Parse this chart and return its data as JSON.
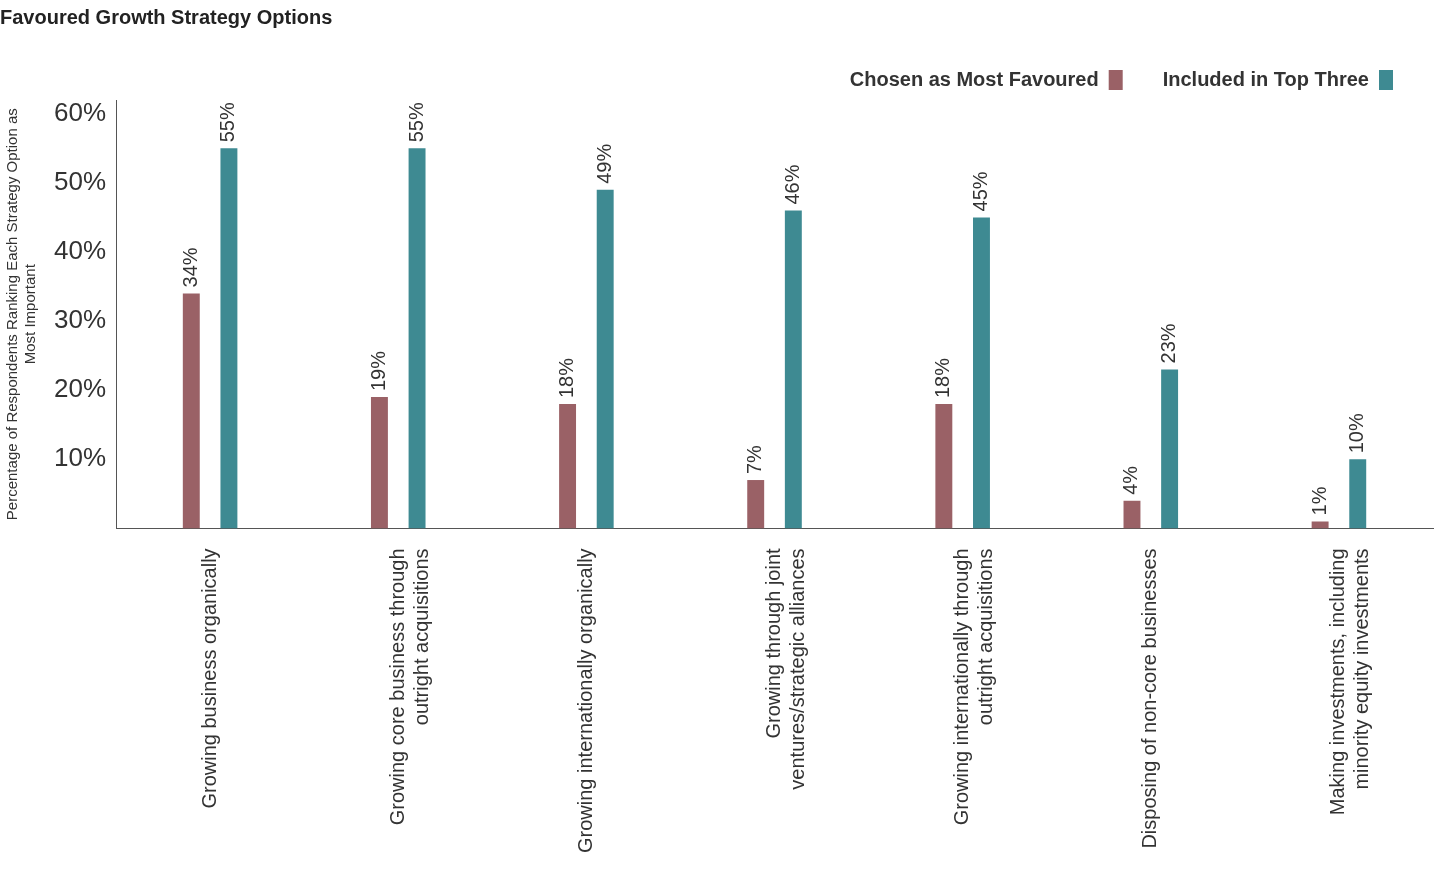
{
  "chart_data": {
    "type": "bar",
    "title": "Favoured Growth Strategy Options",
    "ylabel": "Percentage of Respondents Ranking Each Strategy Option as Most Important",
    "categories": [
      "Growing business organically",
      "Growing core business through outright acquisitions",
      "Growing internationally organically",
      "Growing through joint ventures/strategic alliances",
      "Growing internationally through outright acquisitions",
      "Disposing of non-core businesses",
      "Making investments, including minority equity investments"
    ],
    "series": [
      {
        "name": "Chosen as Most Favoured",
        "color": "#9a6166",
        "values": [
          34,
          19,
          18,
          7,
          18,
          4,
          1
        ],
        "value_labels": [
          "34%",
          "19%",
          "18%",
          "7%",
          "18%",
          "4%",
          "1%"
        ]
      },
      {
        "name": "Included in Top Three",
        "color": "#3e8a92",
        "values": [
          55,
          55,
          49,
          46,
          45,
          23,
          10
        ],
        "value_labels": [
          "55%",
          "55%",
          "49%",
          "46%",
          "45%",
          "23%",
          "10%"
        ]
      }
    ],
    "ylim": [
      0,
      62
    ],
    "yticks": [
      {
        "value": 10,
        "label": "10%"
      },
      {
        "value": 20,
        "label": "20%"
      },
      {
        "value": 30,
        "label": "30%"
      },
      {
        "value": 40,
        "label": "40%"
      },
      {
        "value": 50,
        "label": "50%"
      },
      {
        "value": 60,
        "label": "60%"
      }
    ],
    "grid": false,
    "legend": "top right"
  }
}
